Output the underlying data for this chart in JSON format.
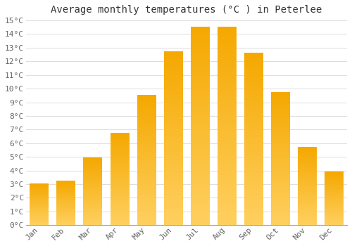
{
  "title": "Average monthly temperatures (°C ) in Peterlee",
  "months": [
    "Jan",
    "Feb",
    "Mar",
    "Apr",
    "May",
    "Jun",
    "Jul",
    "Aug",
    "Sep",
    "Oct",
    "Nov",
    "Dec"
  ],
  "values": [
    3.0,
    3.2,
    4.9,
    6.7,
    9.5,
    12.7,
    14.5,
    14.5,
    12.6,
    9.7,
    5.7,
    3.9
  ],
  "bar_color_top": "#F5A800",
  "bar_color_bottom": "#FFD060",
  "ylim": [
    0,
    15
  ],
  "yticks": [
    0,
    1,
    2,
    3,
    4,
    5,
    6,
    7,
    8,
    9,
    10,
    11,
    12,
    13,
    14,
    15
  ],
  "background_color": "#FFFFFF",
  "grid_color": "#DDDDDD",
  "title_fontsize": 10,
  "tick_fontsize": 8
}
